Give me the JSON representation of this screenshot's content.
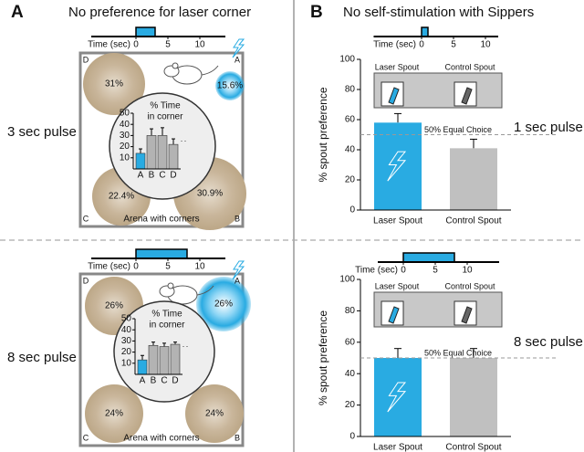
{
  "panel_a": {
    "letter": "A",
    "title": "No preference for laser corner",
    "rows": [
      {
        "pulse_label": "3 sec pulse",
        "timeline": {
          "label": "Time (sec)",
          "xlim": [
            -7,
            14
          ],
          "xticks": [
            0,
            5,
            10
          ],
          "pulse": [
            0,
            3
          ],
          "color": "#29abe2"
        },
        "arena": {
          "label": "Arena with corners",
          "corners": [
            "A",
            "B",
            "C",
            "D"
          ],
          "percent_labels": [
            "15.6%",
            "30.9%",
            "22.4%",
            "31%"
          ]
        },
        "inset": {
          "type": "bar",
          "title_lines": [
            "% Time",
            "in corner"
          ],
          "categories": [
            "A",
            "B",
            "C",
            "D"
          ],
          "values": [
            14,
            30,
            30,
            22
          ],
          "errors": [
            4,
            6,
            7,
            5
          ],
          "colors": [
            "#29abe2",
            "#b3b3b3",
            "#b3b3b3",
            "#b3b3b3"
          ],
          "ylim": [
            0,
            50
          ],
          "yticks": [
            10,
            20,
            30,
            40,
            50
          ]
        }
      },
      {
        "pulse_label": "8 sec pulse",
        "timeline": {
          "label": "Time (sec)",
          "xlim": [
            -7,
            14
          ],
          "xticks": [
            0,
            5,
            10
          ],
          "pulse": [
            0,
            8
          ],
          "color": "#29abe2"
        },
        "arena": {
          "label": "Arena with corners",
          "corners": [
            "A",
            "B",
            "C",
            "D"
          ],
          "percent_labels": [
            "26%",
            "24%",
            "24%",
            "26%"
          ]
        },
        "inset": {
          "type": "bar",
          "title_lines": [
            "% Time",
            "in corner"
          ],
          "categories": [
            "A",
            "B",
            "C",
            "D"
          ],
          "values": [
            13,
            26,
            25,
            27
          ],
          "errors": [
            4,
            3,
            3,
            2
          ],
          "colors": [
            "#29abe2",
            "#b3b3b3",
            "#b3b3b3",
            "#b3b3b3"
          ],
          "ylim": [
            0,
            50
          ],
          "yticks": [
            10,
            20,
            30,
            40,
            50
          ]
        }
      }
    ]
  },
  "panel_b": {
    "letter": "B",
    "title": "No self-stimulation with Sippers",
    "rows": [
      {
        "pulse_label": "1 sec pulse",
        "timeline": {
          "label": "Time (sec)",
          "xlim": [
            -7.5,
            12
          ],
          "xticks": [
            0,
            5,
            10
          ],
          "pulse": [
            0,
            1
          ],
          "color": "#29abe2"
        },
        "chart": {
          "type": "bar",
          "ylabel": "% spout preference",
          "spout_labels": [
            "Laser Spout",
            "Control Spout"
          ],
          "categories": [
            "Laser Spout",
            "Control Spout"
          ],
          "values": [
            58,
            41
          ],
          "errors": [
            6,
            6
          ],
          "colors": [
            "#29abe2",
            "#c0c0c0"
          ],
          "ylim": [
            0,
            100
          ],
          "yticks": [
            0,
            20,
            40,
            60,
            80,
            100
          ],
          "reference": {
            "value": 50,
            "label": "50% Equal Choice"
          }
        }
      },
      {
        "pulse_label": "8 sec pulse",
        "timeline": {
          "label": "Time (sec)",
          "xlim": [
            -4,
            15
          ],
          "xticks": [
            0,
            5,
            10
          ],
          "pulse": [
            0,
            8
          ],
          "color": "#29abe2"
        },
        "chart": {
          "type": "bar",
          "ylabel": "% spout preference",
          "spout_labels": [
            "Laser Spout",
            "Control Spout"
          ],
          "categories": [
            "Laser Spout",
            "Control Spout"
          ],
          "values": [
            50,
            50
          ],
          "errors": [
            6,
            6
          ],
          "colors": [
            "#29abe2",
            "#c0c0c0"
          ],
          "ylim": [
            0,
            100
          ],
          "yticks": [
            0,
            20,
            40,
            60,
            80,
            100
          ],
          "reference": {
            "value": 50,
            "label": "50% Equal Choice"
          }
        }
      }
    ]
  }
}
